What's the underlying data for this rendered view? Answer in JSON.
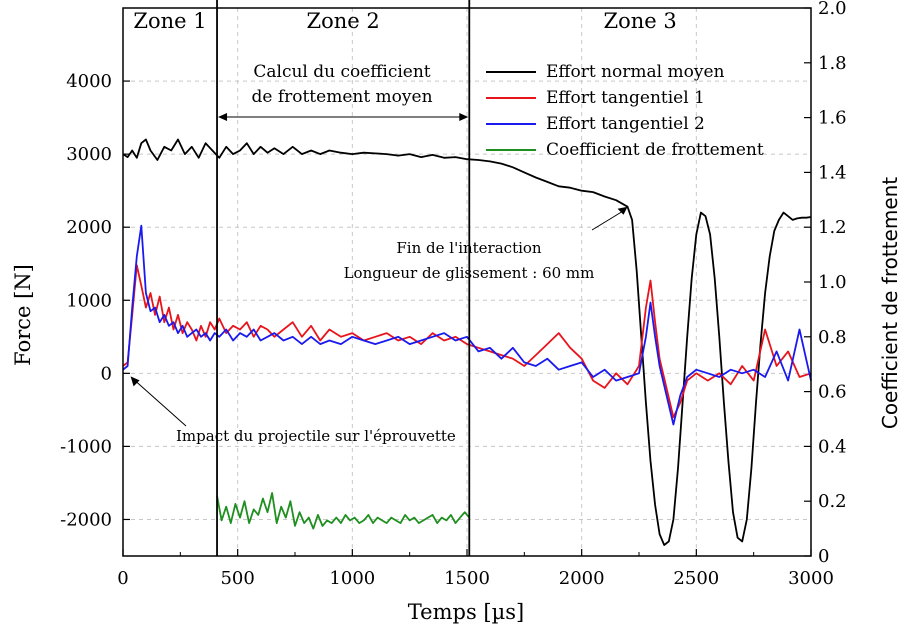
{
  "chart_data": {
    "type": "line",
    "xlabel": "Temps [µs]",
    "ylabel": "Force [N]",
    "y2label": "Coefficient de frottement",
    "xlim": [
      0,
      3000
    ],
    "ylim": [
      -2500,
      5000
    ],
    "y2lim": [
      0,
      2.0
    ],
    "x_ticks": [
      "0",
      "500",
      "1000",
      "1500",
      "2000",
      "2500",
      "3000"
    ],
    "y_ticks": [
      "-2000",
      "-1000",
      "0",
      "1000",
      "2000",
      "3000",
      "4000"
    ],
    "y2_ticks": [
      "0",
      "0.2",
      "0.4",
      "0.6",
      "0.8",
      "1.0",
      "1.2",
      "1.4",
      "1.6",
      "1.8",
      "2.0"
    ],
    "grid": true,
    "legend_position": "top-right",
    "zones": [
      {
        "label": "Zone 1",
        "x_start": 0,
        "x_end": 410
      },
      {
        "label": "Zone 2",
        "x_start": 410,
        "x_end": 1510
      },
      {
        "label": "Zone 3",
        "x_start": 1510,
        "x_end": 3000
      }
    ],
    "annotations": {
      "calc_line1": "Calcul du coefficient",
      "calc_line2": "de frottement moyen",
      "calc_range": [
        410,
        1510
      ],
      "fin_line1": "Fin de l'interaction",
      "fin_line2": "Longueur de glissement : 60 mm",
      "fin_point": [
        2200,
        2280
      ],
      "impact": "Impact du projectile sur l'éprouvette",
      "impact_point": [
        20,
        0
      ]
    },
    "series": [
      {
        "name": "Effort normal moyen",
        "color": "#000000",
        "axis": "left",
        "x": [
          0,
          20,
          40,
          60,
          80,
          100,
          120,
          150,
          180,
          210,
          240,
          270,
          300,
          330,
          360,
          390,
          420,
          450,
          480,
          510,
          540,
          570,
          600,
          630,
          660,
          700,
          740,
          780,
          820,
          860,
          900,
          950,
          1000,
          1050,
          1100,
          1150,
          1200,
          1250,
          1300,
          1350,
          1400,
          1450,
          1500,
          1550,
          1600,
          1650,
          1700,
          1750,
          1800,
          1850,
          1900,
          1950,
          2000,
          2050,
          2100,
          2150,
          2200,
          2220,
          2240,
          2260,
          2280,
          2300,
          2320,
          2340,
          2360,
          2380,
          2400,
          2420,
          2440,
          2460,
          2480,
          2500,
          2520,
          2540,
          2560,
          2580,
          2600,
          2620,
          2640,
          2660,
          2680,
          2700,
          2720,
          2740,
          2760,
          2780,
          2800,
          2820,
          2840,
          2860,
          2880,
          2900,
          2920,
          2940,
          2960,
          2980,
          3000
        ],
        "values": [
          3000,
          2960,
          3050,
          2950,
          3150,
          3200,
          3050,
          2920,
          3100,
          3050,
          3200,
          3000,
          3100,
          2950,
          3150,
          3050,
          2950,
          3100,
          3000,
          3050,
          3150,
          3000,
          3100,
          3020,
          3080,
          3000,
          3100,
          3000,
          3050,
          3000,
          3050,
          3020,
          3000,
          3020,
          3010,
          3000,
          2980,
          3000,
          2960,
          2990,
          2950,
          2960,
          2930,
          2920,
          2900,
          2870,
          2820,
          2750,
          2680,
          2620,
          2560,
          2540,
          2500,
          2480,
          2420,
          2370,
          2280,
          2100,
          1400,
          500,
          -400,
          -1200,
          -1800,
          -2200,
          -2350,
          -2300,
          -2000,
          -1300,
          -400,
          500,
          1300,
          1900,
          2200,
          2150,
          1900,
          1300,
          500,
          -400,
          -1200,
          -1900,
          -2250,
          -2300,
          -2000,
          -1300,
          -400,
          400,
          1100,
          1600,
          1950,
          2100,
          2200,
          2150,
          2100,
          2120,
          2130,
          2130,
          2140
        ],
        "comment_x_note": ""
      },
      {
        "name": "Effort tangentiel 1",
        "color": "#e8141c",
        "axis": "left",
        "x": [
          0,
          20,
          40,
          60,
          80,
          100,
          120,
          140,
          160,
          180,
          200,
          220,
          240,
          260,
          280,
          300,
          320,
          340,
          360,
          380,
          400,
          420,
          450,
          480,
          510,
          540,
          570,
          600,
          630,
          660,
          700,
          740,
          780,
          820,
          860,
          900,
          950,
          1000,
          1050,
          1100,
          1150,
          1200,
          1250,
          1300,
          1350,
          1400,
          1450,
          1500,
          1550,
          1600,
          1650,
          1700,
          1750,
          1800,
          1850,
          1900,
          1950,
          2000,
          2050,
          2100,
          2150,
          2200,
          2250,
          2280,
          2300,
          2320,
          2340,
          2370,
          2400,
          2430,
          2460,
          2500,
          2550,
          2600,
          2650,
          2700,
          2750,
          2800,
          2850,
          2900,
          2950,
          3000
        ],
        "values": [
          100,
          150,
          800,
          1480,
          1200,
          900,
          1100,
          800,
          1050,
          700,
          900,
          600,
          800,
          550,
          700,
          600,
          450,
          650,
          500,
          700,
          600,
          750,
          550,
          650,
          600,
          700,
          500,
          650,
          600,
          500,
          600,
          700,
          500,
          650,
          450,
          600,
          500,
          550,
          450,
          500,
          550,
          450,
          500,
          400,
          550,
          450,
          500,
          400,
          350,
          300,
          250,
          200,
          100,
          250,
          400,
          550,
          350,
          200,
          -100,
          -200,
          0,
          -150,
          100,
          900,
          1270,
          700,
          200,
          -200,
          -600,
          -400,
          -100,
          0,
          -100,
          0,
          -150,
          100,
          -100,
          600,
          100,
          300,
          -50,
          0
        ],
        "comment_x_note": ""
      },
      {
        "name": "Effort tangentiel 2",
        "color": "#1a1aee",
        "axis": "left",
        "x": [
          0,
          20,
          40,
          60,
          80,
          100,
          120,
          140,
          160,
          180,
          200,
          220,
          240,
          260,
          280,
          300,
          320,
          340,
          360,
          380,
          400,
          420,
          450,
          480,
          510,
          540,
          570,
          600,
          630,
          660,
          700,
          740,
          780,
          820,
          860,
          900,
          950,
          1000,
          1050,
          1100,
          1150,
          1200,
          1250,
          1300,
          1350,
          1400,
          1450,
          1500,
          1550,
          1600,
          1650,
          1700,
          1750,
          1800,
          1850,
          1900,
          1950,
          2000,
          2050,
          2100,
          2150,
          2200,
          2250,
          2280,
          2300,
          2320,
          2340,
          2370,
          2400,
          2430,
          2460,
          2500,
          2550,
          2600,
          2650,
          2700,
          2750,
          2800,
          2850,
          2900,
          2950,
          3000
        ],
        "values": [
          50,
          100,
          900,
          1600,
          2020,
          1100,
          850,
          900,
          700,
          800,
          650,
          700,
          550,
          650,
          500,
          550,
          600,
          500,
          550,
          450,
          550,
          500,
          600,
          450,
          550,
          500,
          600,
          450,
          500,
          550,
          450,
          500,
          400,
          500,
          400,
          450,
          400,
          500,
          450,
          400,
          450,
          500,
          400,
          450,
          500,
          550,
          450,
          500,
          300,
          350,
          200,
          350,
          150,
          100,
          200,
          50,
          100,
          150,
          -50,
          50,
          -100,
          -50,
          0,
          500,
          970,
          500,
          100,
          -300,
          -700,
          -300,
          -50,
          50,
          0,
          -50,
          50,
          0,
          50,
          -50,
          300,
          -100,
          600,
          -100
        ],
        "comment_x_note": ""
      },
      {
        "name": "Coefficient de frottement",
        "color": "#1f8f1f",
        "axis": "right",
        "x": [
          410,
          430,
          450,
          470,
          490,
          510,
          530,
          550,
          570,
          590,
          610,
          630,
          650,
          670,
          690,
          710,
          730,
          750,
          770,
          790,
          810,
          830,
          850,
          870,
          890,
          910,
          930,
          950,
          970,
          990,
          1010,
          1030,
          1050,
          1070,
          1090,
          1110,
          1130,
          1150,
          1170,
          1190,
          1210,
          1230,
          1250,
          1270,
          1290,
          1310,
          1330,
          1350,
          1370,
          1390,
          1410,
          1430,
          1450,
          1470,
          1490,
          1510
        ],
        "values": [
          0.22,
          0.13,
          0.18,
          0.12,
          0.19,
          0.14,
          0.2,
          0.12,
          0.17,
          0.15,
          0.21,
          0.16,
          0.23,
          0.12,
          0.18,
          0.14,
          0.2,
          0.11,
          0.16,
          0.12,
          0.14,
          0.1,
          0.15,
          0.11,
          0.13,
          0.12,
          0.14,
          0.12,
          0.15,
          0.13,
          0.14,
          0.12,
          0.13,
          0.15,
          0.12,
          0.14,
          0.13,
          0.12,
          0.14,
          0.13,
          0.12,
          0.15,
          0.13,
          0.14,
          0.12,
          0.13,
          0.14,
          0.15,
          0.12,
          0.14,
          0.13,
          0.15,
          0.12,
          0.14,
          0.16,
          0.14
        ],
        "comment_x_note": ""
      }
    ]
  }
}
